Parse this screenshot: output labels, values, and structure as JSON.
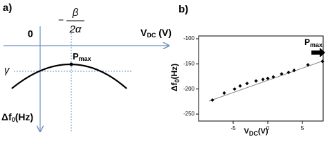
{
  "diagram": {
    "panel_label": "a)",
    "origin_label": "0",
    "beta": "β",
    "two_alpha": "2α",
    "xlabel": {
      "main": "V",
      "sub": "DC",
      "rest": " (V)"
    },
    "gamma": "γ",
    "pmax": {
      "main": "P",
      "sub": "max"
    },
    "ylabel": {
      "main": "Δf",
      "sub": "0",
      "rest": "(Hz)"
    }
  },
  "chart_data": {
    "type": "scatter",
    "panel_label": "b)",
    "xlabel": {
      "main": "V",
      "sub": "DC",
      "rest": "(V)"
    },
    "ylabel": {
      "main": "Δf",
      "sub": "0",
      "rest": "(Hz)"
    },
    "annotation": {
      "main": "P",
      "sub": "max"
    },
    "x": [
      -8,
      -6.3,
      -4.8,
      -4,
      -3,
      -1.7,
      -0.7,
      0,
      0.8,
      2,
      3,
      3.8,
      5.8,
      7.9
    ],
    "values": [
      -222,
      -208,
      -200,
      -194,
      -189,
      -184,
      -181,
      -179,
      -176,
      -170,
      -167,
      -163,
      -152,
      -145
    ],
    "color": "#000000",
    "fit": {
      "x": [
        -8.5,
        8
      ],
      "values": [
        -224,
        -144
      ],
      "color": "#888888"
    },
    "xlim": [
      -10,
      8
    ],
    "xticks": [
      -5,
      0,
      5
    ],
    "ylim": [
      -250,
      -100
    ],
    "yticks": [
      -100,
      -150,
      -200,
      -250
    ]
  }
}
